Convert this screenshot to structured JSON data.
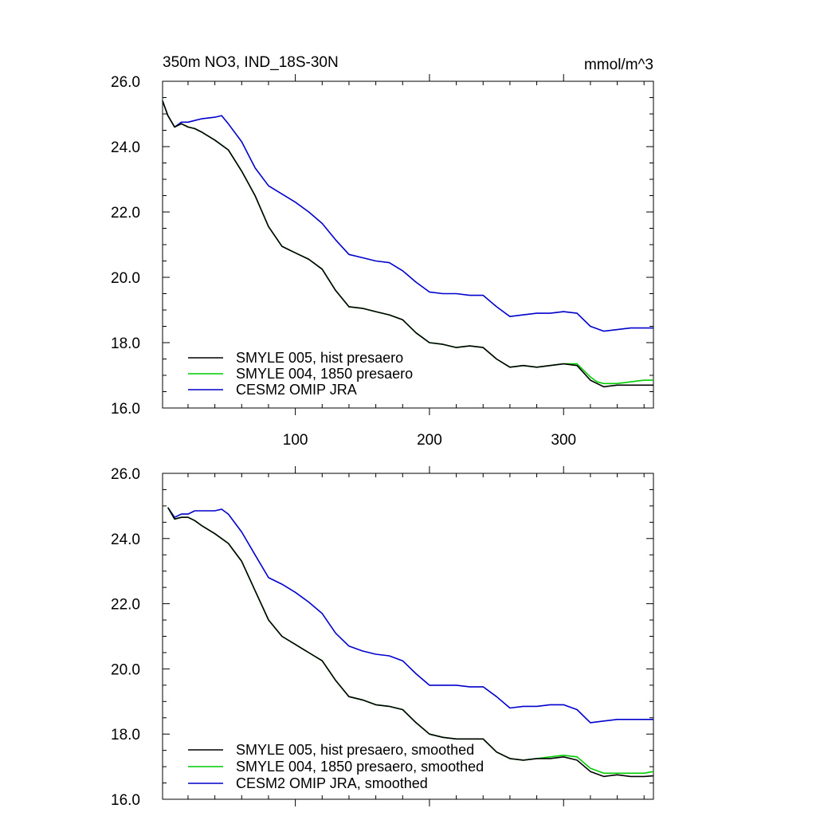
{
  "chart_data": [
    {
      "type": "line",
      "title": "350m NO3, IND_18S-30N",
      "units": "mmol/m^3",
      "xlim": [
        1,
        367
      ],
      "ylim": [
        16,
        26
      ],
      "xticks": [
        100,
        200,
        300
      ],
      "xtick_labels": [
        "100",
        "200",
        "300"
      ],
      "yticks": [
        16,
        18,
        20,
        22,
        24,
        26
      ],
      "ytick_labels": [
        "16.0",
        "18.0",
        "20.0",
        "22.0",
        "24.0",
        "26.0"
      ],
      "legend_position": "bottom-left",
      "series": [
        {
          "name": "SMYLE 005, hist presaero",
          "color": "#000000",
          "x": [
            1,
            5,
            10,
            15,
            20,
            25,
            30,
            40,
            50,
            60,
            70,
            80,
            90,
            100,
            110,
            120,
            130,
            140,
            150,
            160,
            170,
            180,
            190,
            200,
            210,
            220,
            230,
            240,
            250,
            260,
            270,
            280,
            290,
            300,
            310,
            320,
            325,
            330,
            340,
            350,
            360,
            367
          ],
          "y": [
            25.4,
            24.95,
            24.6,
            24.7,
            24.6,
            24.55,
            24.45,
            24.2,
            23.9,
            23.25,
            22.5,
            21.55,
            20.95,
            20.75,
            20.55,
            20.25,
            19.6,
            19.1,
            19.05,
            18.95,
            18.85,
            18.7,
            18.3,
            18.0,
            17.95,
            17.85,
            17.9,
            17.85,
            17.5,
            17.25,
            17.3,
            17.25,
            17.3,
            17.35,
            17.3,
            16.85,
            16.75,
            16.65,
            16.7,
            16.7,
            16.7,
            16.7
          ]
        },
        {
          "name": "SMYLE 004, 1850 presaero",
          "color": "#00cc00",
          "x": [
            1,
            5,
            10,
            15,
            20,
            25,
            30,
            40,
            50,
            60,
            70,
            80,
            90,
            100,
            110,
            120,
            130,
            140,
            150,
            160,
            170,
            180,
            190,
            200,
            210,
            220,
            230,
            240,
            250,
            260,
            270,
            280,
            290,
            300,
            310,
            320,
            325,
            330,
            340,
            350,
            360,
            367
          ],
          "y": [
            25.4,
            24.95,
            24.6,
            24.7,
            24.6,
            24.55,
            24.45,
            24.2,
            23.9,
            23.25,
            22.5,
            21.55,
            20.95,
            20.75,
            20.55,
            20.25,
            19.6,
            19.1,
            19.05,
            18.95,
            18.85,
            18.7,
            18.3,
            18.0,
            17.95,
            17.85,
            17.9,
            17.85,
            17.5,
            17.25,
            17.3,
            17.25,
            17.3,
            17.35,
            17.35,
            16.95,
            16.8,
            16.75,
            16.75,
            16.8,
            16.85,
            16.85
          ]
        },
        {
          "name": "CESM2 OMIP JRA",
          "color": "#0000cc",
          "x": [
            1,
            5,
            10,
            15,
            20,
            25,
            30,
            40,
            45,
            50,
            60,
            70,
            80,
            90,
            100,
            110,
            120,
            130,
            140,
            150,
            160,
            170,
            180,
            190,
            200,
            210,
            220,
            230,
            240,
            250,
            260,
            270,
            280,
            290,
            300,
            310,
            320,
            330,
            340,
            350,
            360,
            367
          ],
          "y": [
            25.4,
            24.95,
            24.6,
            24.75,
            24.75,
            24.8,
            24.85,
            24.9,
            24.95,
            24.7,
            24.15,
            23.35,
            22.8,
            22.55,
            22.3,
            22.0,
            21.65,
            21.15,
            20.7,
            20.6,
            20.5,
            20.45,
            20.2,
            19.85,
            19.55,
            19.5,
            19.5,
            19.45,
            19.45,
            19.1,
            18.8,
            18.85,
            18.9,
            18.9,
            18.95,
            18.9,
            18.5,
            18.35,
            18.4,
            18.45,
            18.45,
            18.45
          ]
        }
      ]
    },
    {
      "type": "line",
      "xlim": [
        1,
        367
      ],
      "ylim": [
        16,
        26
      ],
      "xticks": [
        100,
        200,
        300
      ],
      "yticks": [
        16,
        18,
        20,
        22,
        24,
        26
      ],
      "ytick_labels": [
        "16.0",
        "18.0",
        "20.0",
        "22.0",
        "24.0",
        "26.0"
      ],
      "legend_position": "bottom-left",
      "series": [
        {
          "name": "SMYLE 005, hist presaero, smoothed",
          "color": "#000000",
          "x": [
            5,
            10,
            15,
            20,
            25,
            30,
            40,
            50,
            60,
            70,
            80,
            90,
            100,
            110,
            120,
            130,
            140,
            150,
            160,
            170,
            180,
            190,
            200,
            210,
            220,
            230,
            240,
            250,
            260,
            270,
            280,
            290,
            300,
            310,
            320,
            330,
            340,
            350,
            360,
            367
          ],
          "y": [
            24.95,
            24.6,
            24.65,
            24.65,
            24.55,
            24.4,
            24.15,
            23.85,
            23.3,
            22.4,
            21.5,
            21.0,
            20.75,
            20.5,
            20.25,
            19.65,
            19.15,
            19.05,
            18.9,
            18.85,
            18.75,
            18.35,
            18.0,
            17.9,
            17.85,
            17.85,
            17.85,
            17.45,
            17.25,
            17.2,
            17.25,
            17.25,
            17.3,
            17.2,
            16.85,
            16.7,
            16.75,
            16.7,
            16.7,
            16.72
          ]
        },
        {
          "name": "SMYLE 004, 1850 presaero, smoothed",
          "color": "#00cc00",
          "x": [
            5,
            10,
            15,
            20,
            25,
            30,
            40,
            50,
            60,
            70,
            80,
            90,
            100,
            110,
            120,
            130,
            140,
            150,
            160,
            170,
            180,
            190,
            200,
            210,
            220,
            230,
            240,
            250,
            260,
            270,
            280,
            290,
            300,
            310,
            320,
            330,
            340,
            350,
            360,
            367
          ],
          "y": [
            24.95,
            24.6,
            24.65,
            24.65,
            24.55,
            24.4,
            24.15,
            23.85,
            23.3,
            22.4,
            21.5,
            21.0,
            20.75,
            20.5,
            20.25,
            19.65,
            19.15,
            19.05,
            18.9,
            18.85,
            18.75,
            18.35,
            18.0,
            17.9,
            17.85,
            17.85,
            17.85,
            17.45,
            17.25,
            17.2,
            17.25,
            17.3,
            17.35,
            17.3,
            16.95,
            16.8,
            16.8,
            16.8,
            16.8,
            16.85
          ]
        },
        {
          "name": "CESM2 OMIP JRA, smoothed",
          "color": "#0000cc",
          "x": [
            5,
            10,
            15,
            20,
            25,
            30,
            40,
            45,
            50,
            60,
            70,
            80,
            90,
            100,
            110,
            120,
            130,
            140,
            150,
            160,
            170,
            180,
            190,
            200,
            210,
            220,
            230,
            240,
            250,
            260,
            270,
            280,
            290,
            300,
            310,
            320,
            330,
            340,
            350,
            360,
            367
          ],
          "y": [
            24.95,
            24.65,
            24.75,
            24.75,
            24.85,
            24.85,
            24.85,
            24.9,
            24.75,
            24.2,
            23.5,
            22.8,
            22.6,
            22.35,
            22.05,
            21.7,
            21.1,
            20.7,
            20.55,
            20.45,
            20.4,
            20.25,
            19.85,
            19.5,
            19.5,
            19.5,
            19.45,
            19.45,
            19.15,
            18.8,
            18.85,
            18.85,
            18.9,
            18.9,
            18.75,
            18.35,
            18.4,
            18.45,
            18.45,
            18.45,
            18.45
          ]
        }
      ]
    }
  ]
}
